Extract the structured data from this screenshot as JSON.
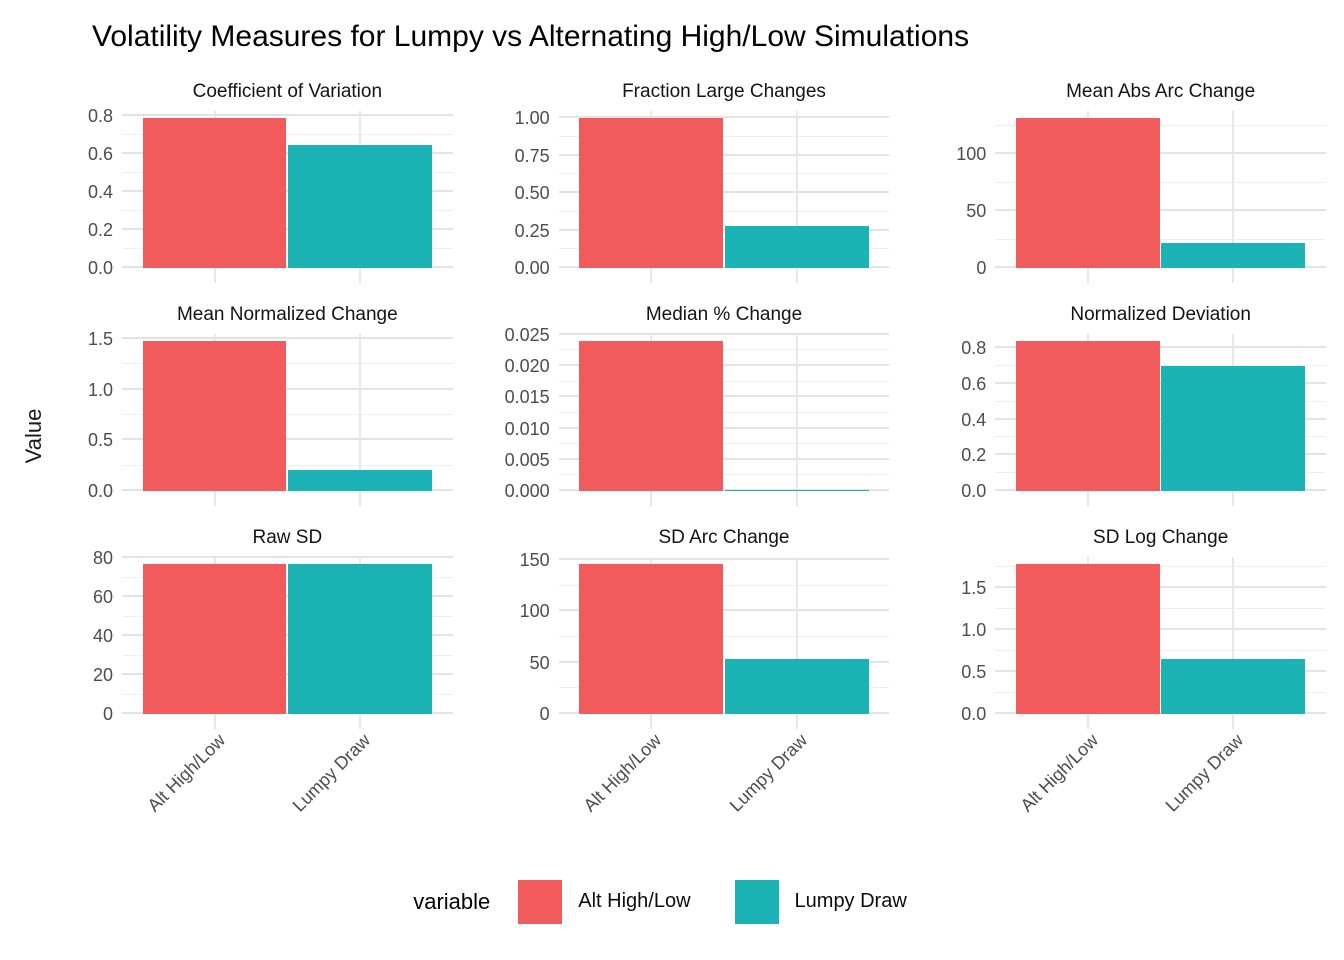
{
  "title": "Volatility Measures for Lumpy vs Alternating High/Low Simulations",
  "y_axis_title": "Value",
  "legend": {
    "title": "variable",
    "entries": [
      {
        "label": "Alt High/Low",
        "color": "#F15B5B"
      },
      {
        "label": "Lumpy Draw",
        "color": "#1BB3B4"
      }
    ]
  },
  "chart_data": {
    "type": "bar",
    "facet_layout": "3x3 grid, free y scales",
    "categories": [
      "Alt High/Low",
      "Lumpy Draw"
    ],
    "series": [
      {
        "name": "Alt High/Low",
        "color": "#F15B5B"
      },
      {
        "name": "Lumpy Draw",
        "color": "#1BB3B4"
      }
    ],
    "gridlines": "horizontal major + minor, vertical major at categories",
    "legend_position": "bottom",
    "panels": [
      {
        "title": "Coefficient of Variation",
        "yticks": [
          0.0,
          0.2,
          0.4,
          0.6,
          0.8
        ],
        "decimals": 1,
        "values": [
          0.79,
          0.65
        ]
      },
      {
        "title": "Fraction Large Changes",
        "yticks": [
          0.0,
          0.25,
          0.5,
          0.75,
          1.0
        ],
        "decimals": 2,
        "values": [
          1.0,
          0.28
        ]
      },
      {
        "title": "Mean Abs Arc Change",
        "yticks": [
          0,
          50,
          100
        ],
        "decimals": 0,
        "values": [
          132,
          22
        ]
      },
      {
        "title": "Mean Normalized Change",
        "yticks": [
          0.0,
          0.5,
          1.0,
          1.5
        ],
        "decimals": 1,
        "values": [
          1.48,
          0.21
        ]
      },
      {
        "title": "Median % Change",
        "yticks": [
          0.0,
          0.005,
          0.01,
          0.015,
          0.02,
          0.025
        ],
        "decimals": 3,
        "values": [
          0.024,
          0.0002
        ]
      },
      {
        "title": "Normalized Deviation",
        "yticks": [
          0.0,
          0.2,
          0.4,
          0.6,
          0.8
        ],
        "decimals": 1,
        "values": [
          0.84,
          0.7
        ]
      },
      {
        "title": "Raw SD",
        "yticks": [
          0,
          20,
          40,
          60,
          80
        ],
        "decimals": 0,
        "values": [
          77,
          77
        ]
      },
      {
        "title": "SD Arc Change",
        "yticks": [
          0,
          50,
          100,
          150
        ],
        "decimals": 0,
        "values": [
          146,
          54
        ]
      },
      {
        "title": "SD Log Change",
        "yticks": [
          0.0,
          0.5,
          1.0,
          1.5
        ],
        "decimals": 1,
        "values": [
          1.78,
          0.65
        ]
      }
    ]
  }
}
